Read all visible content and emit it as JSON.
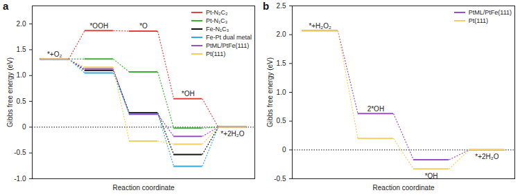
{
  "chart_data": [
    {
      "type": "step",
      "title": "a",
      "x_label": "Reaction coordinate",
      "y_label": "Gibbs free energy (eV)",
      "categories": [
        "*+O₂",
        "*OOH",
        "*O",
        "*OH",
        "*+2H₂O"
      ],
      "series": [
        {
          "name": "Pt-N₂C₂",
          "color": "#e0453a",
          "values": [
            1.32,
            1.87,
            1.86,
            0.55,
            0
          ]
        },
        {
          "name": "Pt-N₁C₃",
          "color": "#3cb034",
          "values": [
            1.32,
            1.32,
            1.07,
            -0.02,
            0
          ]
        },
        {
          "name": "Fe-N₁C₃",
          "color": "#111111",
          "values": [
            1.32,
            1.1,
            0.28,
            -0.53,
            0
          ]
        },
        {
          "name": "Fe-Pt dual metal",
          "color": "#35a8d8",
          "values": [
            1.32,
            1.05,
            0.26,
            -0.76,
            0
          ]
        },
        {
          "name": "PtML/PtFe(111)",
          "color": "#9b4fc7",
          "values": [
            1.32,
            1.13,
            0.25,
            -0.18,
            0
          ]
        },
        {
          "name": "Pt(111)",
          "color": "#f0d060",
          "values": [
            1.32,
            1.16,
            -0.27,
            -0.33,
            0
          ]
        }
      ],
      "ylim": [
        -1.0,
        2.35
      ],
      "yticks": [
        {
          "value": -1.0,
          "label": "-1.0"
        },
        -0.5,
        0,
        0.5,
        {
          "value": 1.0,
          "label": "1.0"
        },
        1.5,
        {
          "value": 2.0,
          "label": "2.0"
        }
      ],
      "reference_line": 0,
      "legend": "top-right",
      "tick_labels": "y"
    },
    {
      "type": "step",
      "title": "b",
      "x_label": "Reaction coordinate",
      "y_label": "Gibbs free energy (eV)",
      "categories": [
        "*+H₂O₂",
        "2*OH",
        "*OH",
        "*+2H₂O"
      ],
      "series": [
        {
          "name": "PtML/PtFe(111)",
          "color": "#9b4fc7",
          "values": [
            2.07,
            0.63,
            -0.17,
            0
          ]
        },
        {
          "name": "Pt(111)",
          "color": "#f0d060",
          "values": [
            2.07,
            0.2,
            -0.33,
            0
          ]
        }
      ],
      "ylim": [
        -0.5,
        2.5
      ],
      "yticks": [
        -0.5,
        0,
        0.5,
        {
          "value": 1.0,
          "label": "1.0"
        },
        1.5,
        {
          "value": 2.0,
          "label": "2.0"
        },
        2.5
      ],
      "reference_line": 0,
      "legend": "top-right",
      "tick_labels": "y"
    }
  ]
}
